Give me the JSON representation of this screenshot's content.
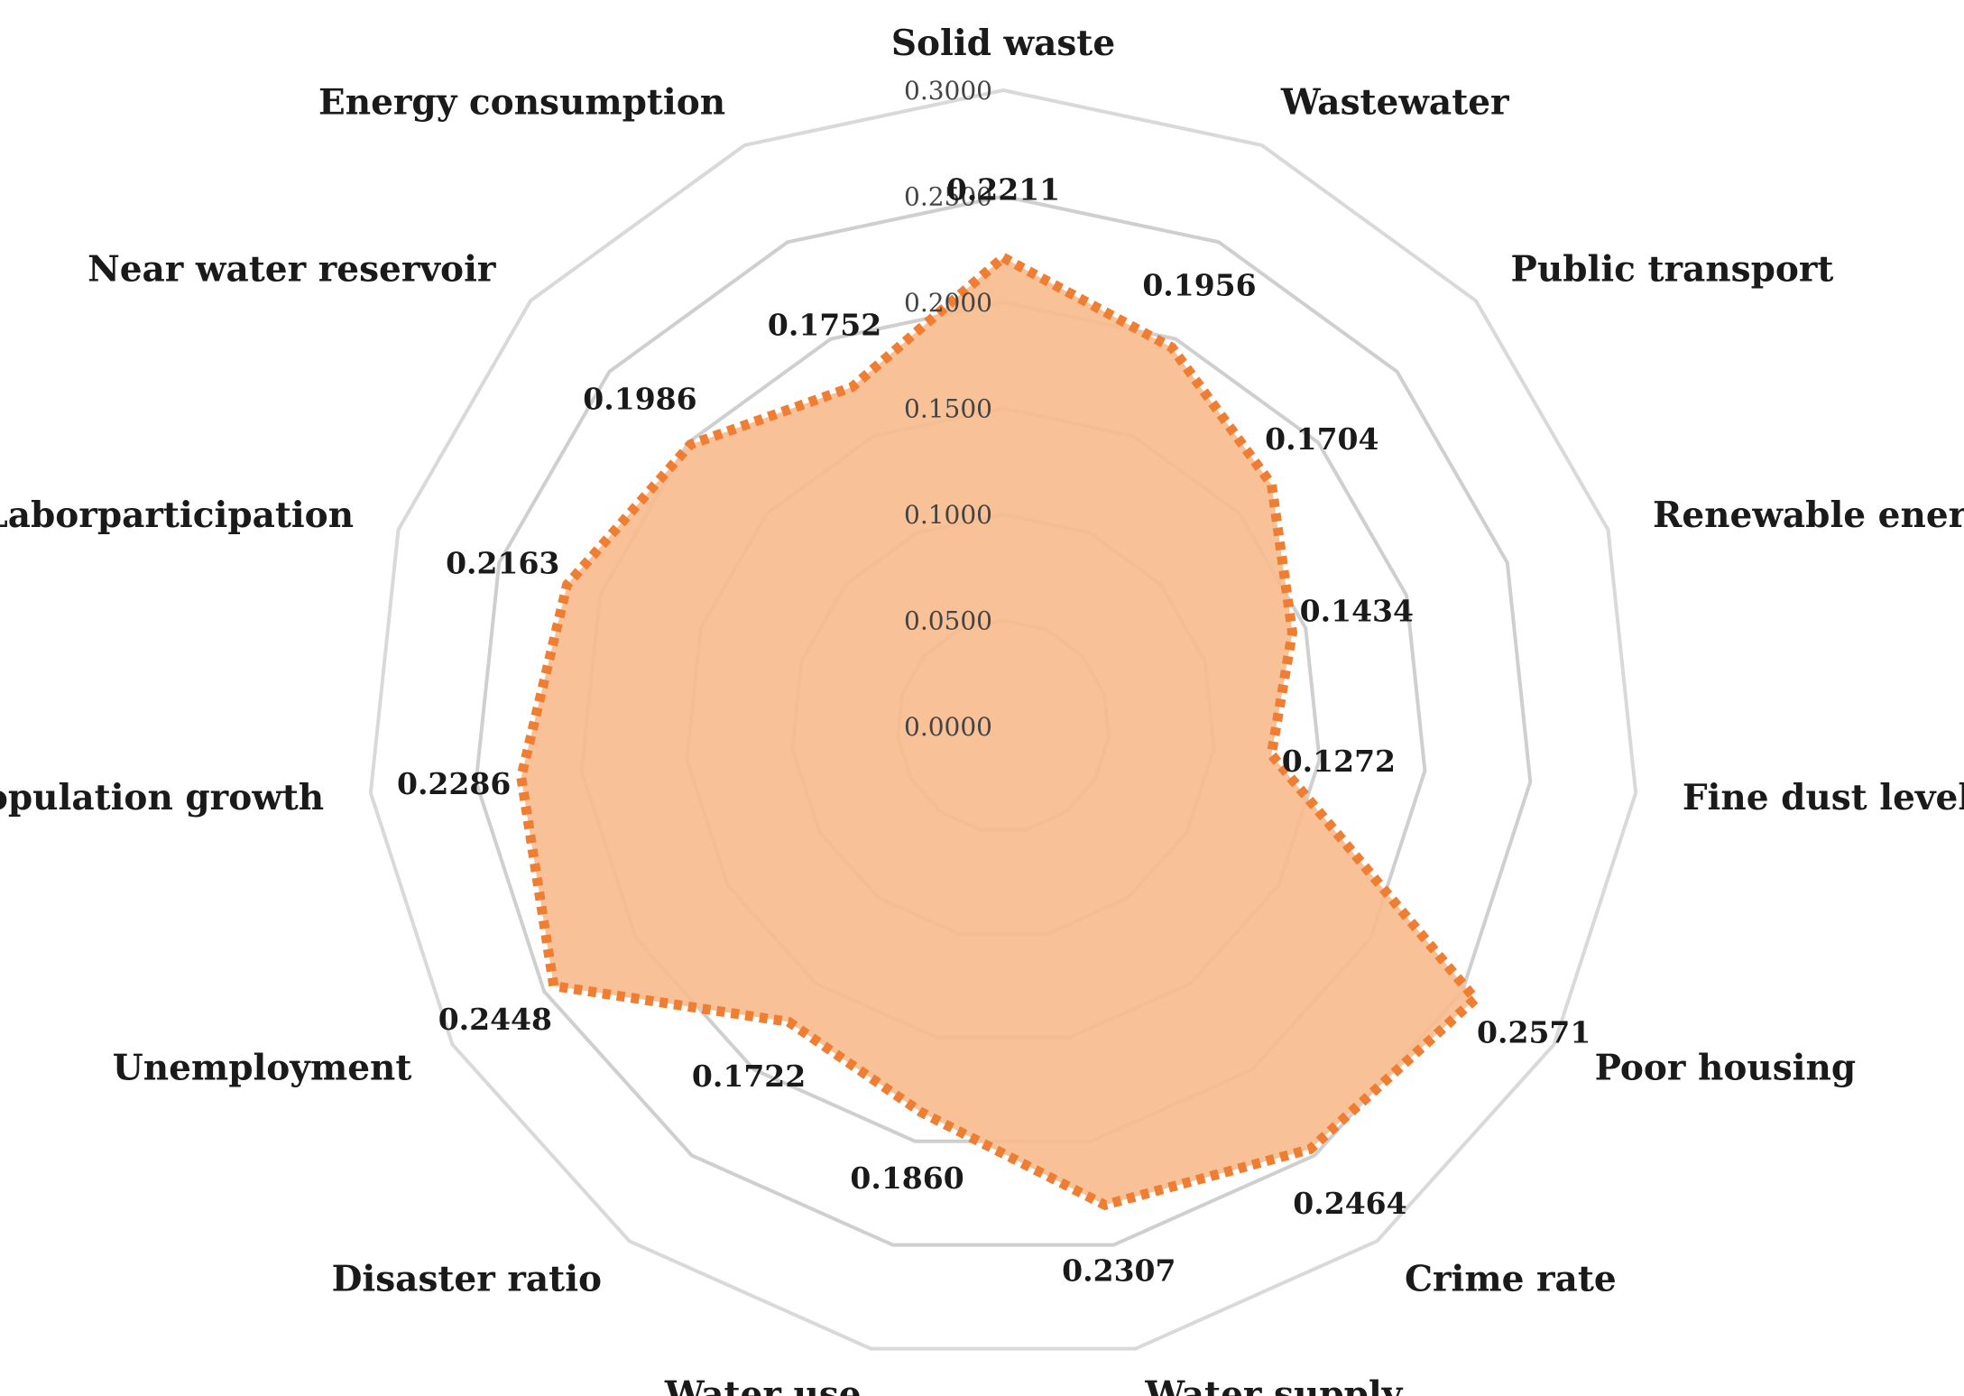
{
  "chart_data": {
    "type": "radar",
    "categories": [
      "Solid waste",
      "Wastewater",
      "Public transport",
      "Renewable energy",
      "Fine dust level",
      "Poor housing",
      "Crime rate",
      "Water supply",
      "Water use",
      "Disaster ratio",
      "Unemployment",
      "Population growth",
      "Laborparticipation",
      "Near water reservoir",
      "Energy consumption"
    ],
    "values": [
      0.2211,
      0.1956,
      0.1704,
      0.1434,
      0.1272,
      0.2571,
      0.2464,
      0.2307,
      0.186,
      0.1722,
      0.2448,
      0.2286,
      0.2163,
      0.1986,
      0.1752
    ],
    "value_labels": [
      "0.2211",
      "0.1956",
      "0.1704",
      "0.1434",
      "0.1272",
      "0.2571",
      "0.2464",
      "0.2307",
      "0.1860",
      "0.1722",
      "0.2448",
      "0.2286",
      "0.2163",
      "0.1986",
      "0.1752"
    ],
    "rlim": [
      0,
      0.3
    ],
    "ticks": [
      "0.0000",
      "0.0500",
      "0.1000",
      "0.1500",
      "0.2000",
      "0.2500",
      "0.3000"
    ],
    "tick_values": [
      0,
      0.05,
      0.1,
      0.15,
      0.2,
      0.25,
      0.3
    ],
    "grid": true,
    "legend": "none",
    "colors": {
      "fill": "#f8bc8f",
      "line": "#ef7d32",
      "grid": "#d9d9d9"
    }
  }
}
